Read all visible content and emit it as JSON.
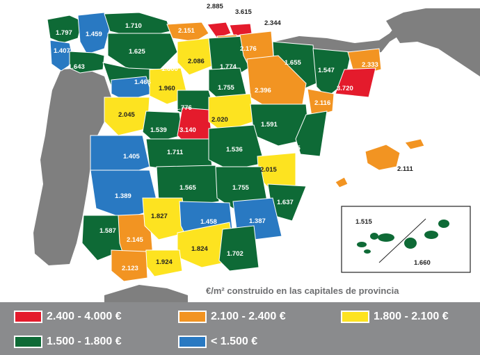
{
  "caption": "€/m² construido en las capitales de provincia",
  "legend": [
    {
      "label": "2.400 - 4.000 €",
      "color": "#e41b2c"
    },
    {
      "label": "2.100 - 2.400 €",
      "color": "#f29422"
    },
    {
      "label": "1.800 - 2.100 €",
      "color": "#fde320"
    },
    {
      "label": "1.500 - 1.800 €",
      "color": "#0e6a36"
    },
    {
      "label": "< 1.500 €",
      "color": "#2979c2"
    }
  ],
  "colors": {
    "land": "#7f7f7f",
    "sea": "#ffffff",
    "legend_bg": "#8a8b8d"
  },
  "provinces": [
    {
      "value": "1.797",
      "tier": "green"
    },
    {
      "value": "1.459",
      "tier": "blue"
    },
    {
      "value": "1.710",
      "tier": "green"
    },
    {
      "value": "2.151",
      "tier": "orange"
    },
    {
      "value": "2.885",
      "tier": "red"
    },
    {
      "value": "3.615",
      "tier": "red"
    },
    {
      "value": "2.344",
      "tier": "orange"
    },
    {
      "value": "1.407",
      "tier": "blue"
    },
    {
      "value": "1.625",
      "tier": "green"
    },
    {
      "value": "2.176",
      "tier": "orange"
    },
    {
      "value": "1.643",
      "tier": "green"
    },
    {
      "value": "2.086",
      "tier": "yellow"
    },
    {
      "value": "1.774",
      "tier": "green"
    },
    {
      "value": "1.655",
      "tier": "green"
    },
    {
      "value": "2.333",
      "tier": "orange"
    },
    {
      "value": "1.600",
      "tier": "green"
    },
    {
      "value": "1.547",
      "tier": "green"
    },
    {
      "value": "1.466",
      "tier": "blue"
    },
    {
      "value": "1.960",
      "tier": "yellow"
    },
    {
      "value": "1.755",
      "tier": "green"
    },
    {
      "value": "2.396",
      "tier": "orange"
    },
    {
      "value": "3.720",
      "tier": "red"
    },
    {
      "value": "2.116",
      "tier": "orange"
    },
    {
      "value": "1.776",
      "tier": "green"
    },
    {
      "value": "2.045",
      "tier": "yellow"
    },
    {
      "value": "2.020",
      "tier": "yellow"
    },
    {
      "value": "1.591",
      "tier": "green"
    },
    {
      "value": "1.539",
      "tier": "green"
    },
    {
      "value": "3.140",
      "tier": "red"
    },
    {
      "value": "1.735",
      "tier": "green"
    },
    {
      "value": "1.711",
      "tier": "green"
    },
    {
      "value": "1.536",
      "tier": "green"
    },
    {
      "value": "1.405",
      "tier": "blue"
    },
    {
      "value": "2.015",
      "tier": "yellow"
    },
    {
      "value": "2.111",
      "tier": "orange"
    },
    {
      "value": "1.565",
      "tier": "green"
    },
    {
      "value": "1.755",
      "tier": "green"
    },
    {
      "value": "1.389",
      "tier": "blue"
    },
    {
      "value": "1.637",
      "tier": "green"
    },
    {
      "value": "1.827",
      "tier": "yellow"
    },
    {
      "value": "1.458",
      "tier": "blue"
    },
    {
      "value": "1.387",
      "tier": "blue"
    },
    {
      "value": "1.587",
      "tier": "green"
    },
    {
      "value": "2.145",
      "tier": "orange"
    },
    {
      "value": "1.824",
      "tier": "yellow"
    },
    {
      "value": "1.702",
      "tier": "green"
    },
    {
      "value": "2.123",
      "tier": "orange"
    },
    {
      "value": "1.924",
      "tier": "yellow"
    },
    {
      "value": "1.515",
      "tier": "green"
    },
    {
      "value": "1.660",
      "tier": "green"
    }
  ]
}
